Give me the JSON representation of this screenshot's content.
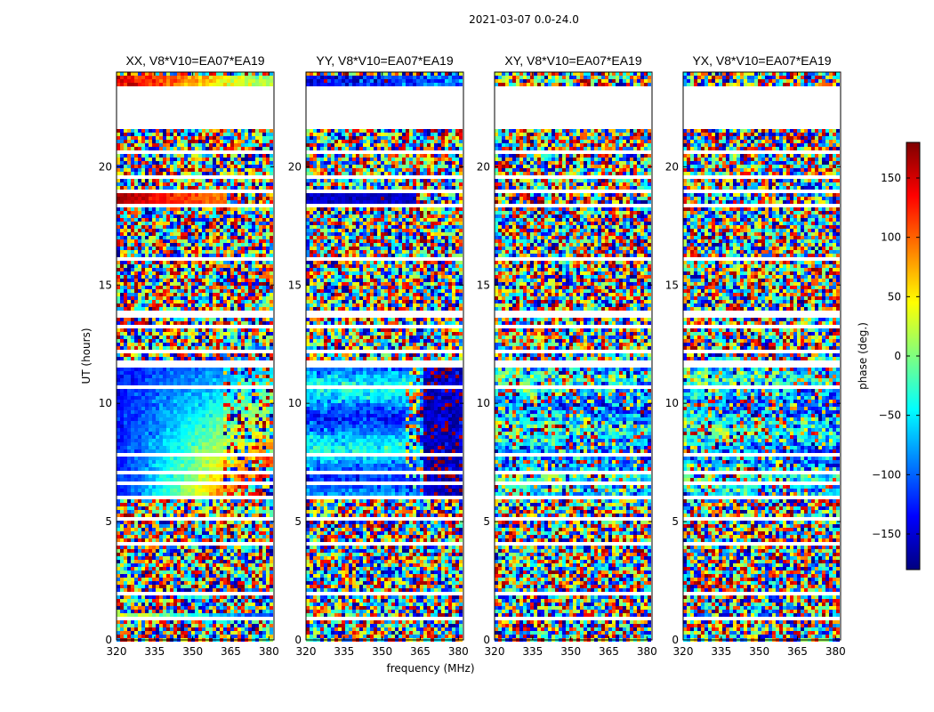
{
  "chart_data": {
    "type": "heatmap",
    "title": "2021-03-07 0.0-24.0",
    "xlabel": "frequency (MHz)",
    "ylabel": "UT (hours)",
    "xlim": [
      320,
      382
    ],
    "ylim": [
      0,
      24
    ],
    "xticks": [
      "320",
      "335",
      "350",
      "365",
      "380"
    ],
    "yticks": [
      "0",
      "5",
      "10",
      "15",
      "20"
    ],
    "panels": [
      {
        "name": "xx",
        "title": "XX, V8*V10=EA07*EA19",
        "pattern": "xx"
      },
      {
        "name": "yy",
        "title": "YY, V8*V10=EA07*EA19",
        "pattern": "yy"
      },
      {
        "name": "xy",
        "title": "XY, V8*V10=EA07*EA19",
        "pattern": "cross"
      },
      {
        "name": "yx",
        "title": "YX, V8*V10=EA07*EA19",
        "pattern": "cross"
      }
    ],
    "gaps_hours": [
      [
        0.95,
        1.05
      ],
      [
        1.95,
        2.05
      ],
      [
        3.1,
        3.2
      ],
      [
        4.1,
        4.2
      ],
      [
        4.6,
        4.65
      ],
      [
        5.1,
        5.2
      ],
      [
        6.05,
        6.1
      ],
      [
        6.6,
        6.7
      ],
      [
        7.1,
        7.15
      ],
      [
        7.35,
        7.4
      ],
      [
        7.6,
        7.65
      ],
      [
        7.85,
        7.9
      ],
      [
        8.1,
        8.15
      ],
      [
        8.35,
        8.4
      ],
      [
        8.55,
        8.6
      ],
      [
        8.85,
        8.9
      ],
      [
        9.1,
        9.15
      ],
      [
        9.6,
        9.65
      ],
      [
        10.2,
        10.25
      ],
      [
        10.7,
        10.75
      ],
      [
        11.55,
        11.8
      ],
      [
        12.2,
        12.3
      ],
      [
        12.7,
        12.8
      ],
      [
        13.2,
        13.3
      ],
      [
        13.7,
        13.9
      ],
      [
        14.8,
        14.9
      ],
      [
        15.25,
        15.3
      ],
      [
        16.1,
        16.2
      ],
      [
        17.4,
        17.45
      ],
      [
        18.3,
        18.5
      ],
      [
        18.9,
        19.0
      ],
      [
        19.5,
        19.6
      ],
      [
        20.6,
        20.7
      ],
      [
        21.4,
        21.5
      ],
      [
        21.6,
        23.4
      ]
    ],
    "colorbar": {
      "label": "phase (deg.)",
      "range": [
        -180,
        180
      ],
      "ticks": [
        "150",
        "100",
        "50",
        "0",
        "−50",
        "−100",
        "−150"
      ],
      "tick_values": [
        150,
        100,
        50,
        0,
        -50,
        -100,
        -150
      ],
      "colormap": "jet",
      "colors": [
        "#00007f",
        "#0000ff",
        "#007fff",
        "#00ffff",
        "#7fff7f",
        "#ffff00",
        "#ff7f00",
        "#ff0000",
        "#7f0000"
      ]
    }
  }
}
